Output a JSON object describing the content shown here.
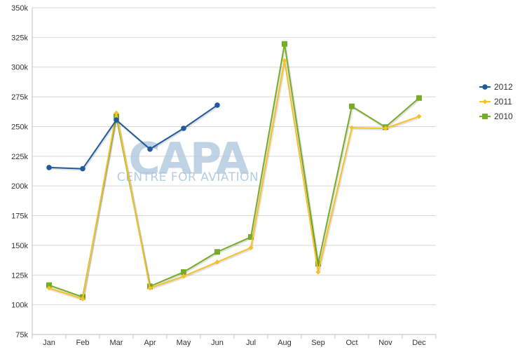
{
  "watermark": {
    "main": "CAPA",
    "sub": "CENTRE FOR AVIATION",
    "color": "#a9c4dc"
  },
  "chart_data": {
    "type": "line",
    "title": "",
    "xlabel": "",
    "ylabel": "",
    "categories": [
      "Jan",
      "Feb",
      "Mar",
      "Apr",
      "May",
      "Jun",
      "Jul",
      "Aug",
      "Sep",
      "Oct",
      "Nov",
      "Dec"
    ],
    "y_ticks": [
      "75k",
      "100k",
      "125k",
      "150k",
      "175k",
      "200k",
      "225k",
      "250k",
      "275k",
      "300k",
      "325k",
      "350k"
    ],
    "ylim": [
      75000,
      350000
    ],
    "grid": true,
    "legend_position": "right",
    "series": [
      {
        "name": "2012",
        "color": "#1f5a9c",
        "marker": "circle",
        "values": [
          215500,
          214500,
          255500,
          231000,
          248500,
          268000,
          null,
          null,
          null,
          null,
          null,
          null
        ]
      },
      {
        "name": "2011",
        "color": "#f5c225",
        "marker": "diamond",
        "values": [
          114000,
          105000,
          261500,
          114000,
          124000,
          136000,
          148000,
          305500,
          127500,
          249000,
          248500,
          258500
        ]
      },
      {
        "name": "2010",
        "color": "#77ac2a",
        "marker": "square",
        "values": [
          116500,
          106500,
          258500,
          115500,
          127500,
          144500,
          157000,
          319500,
          134500,
          267000,
          249500,
          274000
        ]
      }
    ]
  }
}
